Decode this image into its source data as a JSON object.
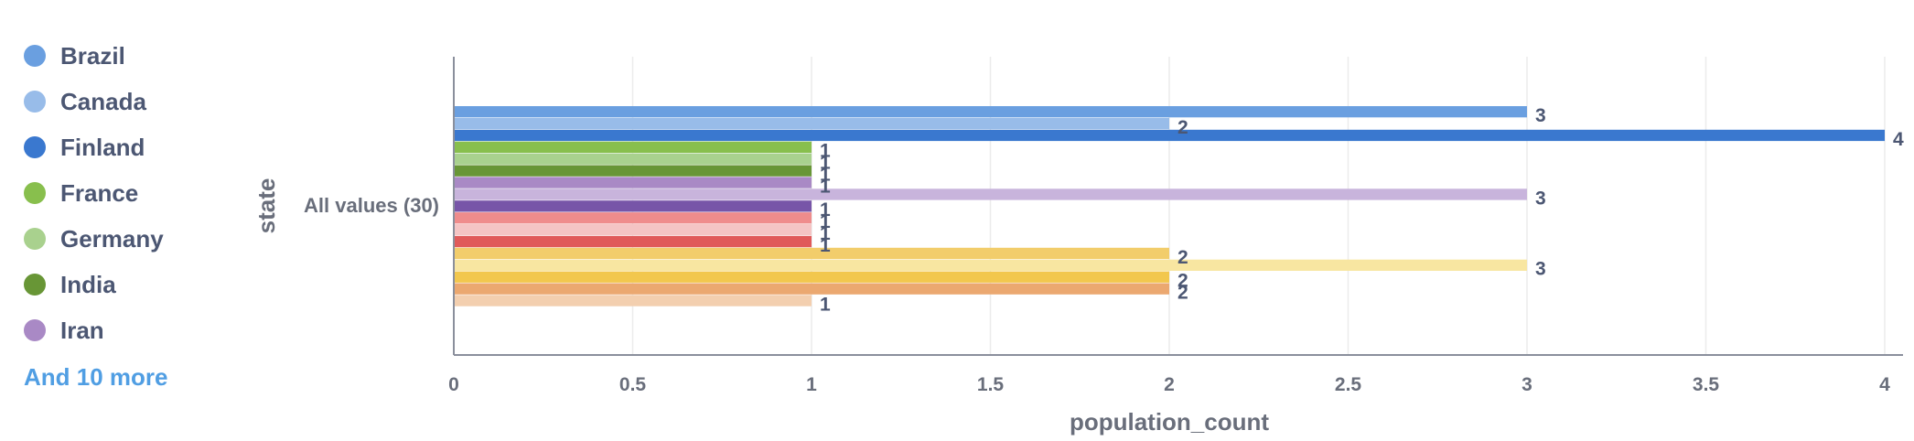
{
  "legend": {
    "items": [
      {
        "label": "Brazil",
        "color": "#6a9fe0"
      },
      {
        "label": "Canada",
        "color": "#98bce9"
      },
      {
        "label": "Finland",
        "color": "#3a78cf"
      },
      {
        "label": "France",
        "color": "#88bf4d"
      },
      {
        "label": "Germany",
        "color": "#a9d18e"
      },
      {
        "label": "India",
        "color": "#689636"
      },
      {
        "label": "Iran",
        "color": "#a989c5"
      }
    ],
    "more_label": "And 10 more"
  },
  "chart_data": {
    "type": "bar",
    "orientation": "horizontal",
    "xlabel": "population_count",
    "ylabel": "state",
    "categories": [
      "All values (30)"
    ],
    "xlim": [
      0,
      4
    ],
    "xticks": [
      "0",
      "0.5",
      "1",
      "1.5",
      "2",
      "2.5",
      "3",
      "3.5",
      "4"
    ],
    "grid": true,
    "series": [
      {
        "name": "Brazil",
        "values": [
          3
        ],
        "color": "#6a9fe0"
      },
      {
        "name": "Canada",
        "values": [
          2
        ],
        "color": "#98bce9"
      },
      {
        "name": "Finland",
        "values": [
          4
        ],
        "color": "#3a78cf"
      },
      {
        "name": "France",
        "values": [
          1
        ],
        "color": "#88bf4d"
      },
      {
        "name": "Germany",
        "values": [
          1
        ],
        "color": "#a9d18e"
      },
      {
        "name": "India",
        "values": [
          1
        ],
        "color": "#689636"
      },
      {
        "name": "Iran",
        "values": [
          1
        ],
        "color": "#a989c5"
      },
      {
        "values": [
          3
        ],
        "color": "#c8b4dc"
      },
      {
        "values": [
          1
        ],
        "color": "#7755a8"
      },
      {
        "values": [
          1
        ],
        "color": "#ef8c8c"
      },
      {
        "values": [
          1
        ],
        "color": "#f4c4c4"
      },
      {
        "values": [
          1
        ],
        "color": "#e05a5a"
      },
      {
        "values": [
          2
        ],
        "color": "#f2cd6b"
      },
      {
        "values": [
          3
        ],
        "color": "#f8e6a1"
      },
      {
        "values": [
          2
        ],
        "color": "#f2c74d"
      },
      {
        "values": [
          2
        ],
        "color": "#eba870"
      },
      {
        "values": [
          1
        ],
        "color": "#f3cfaf"
      }
    ]
  }
}
